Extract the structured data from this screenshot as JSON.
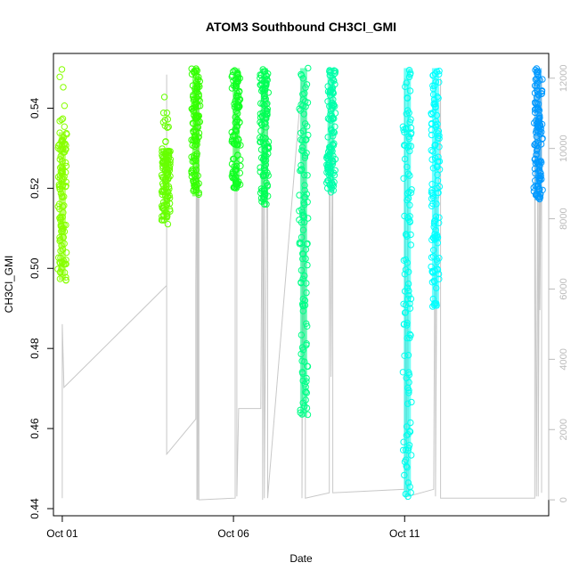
{
  "chart_data": {
    "type": "scatter",
    "title": "ATOM3 Southbound CH3Cl_GMI",
    "xlabel": "Date",
    "ylabel": "CH3Cl_GMI",
    "x_ticks": [
      "Oct 01",
      "Oct 06",
      "Oct 11"
    ],
    "x_tick_days": [
      1,
      6,
      11
    ],
    "xlim_days": [
      0.95,
      15.0
    ],
    "ylim": [
      0.44,
      0.551
    ],
    "y_ticks": [
      0.44,
      0.46,
      0.48,
      0.5,
      0.52,
      0.54
    ],
    "y_tick_labels": [
      "0.44",
      "0.46",
      "0.48",
      "0.50",
      "0.52",
      "0.54"
    ],
    "y2_label": "",
    "y2_lim": [
      -250,
      12400
    ],
    "y2_ticks": [
      0,
      2000,
      4000,
      6000,
      8000,
      10000,
      12000
    ],
    "y2_tick_labels": [
      "0",
      "2000",
      "4000",
      "6000",
      "8000",
      "10000",
      "12000"
    ],
    "altitude_color": "#c8c8c8",
    "grid": false,
    "series": [
      {
        "day": 1.0,
        "color": "#88ff00",
        "dense_min": 0.497,
        "dense_max": 0.534,
        "sparse_min": 0.497,
        "sparse_max": 0.55
      },
      {
        "day": 4.03,
        "color": "#66ff00",
        "dense_min": 0.512,
        "dense_max": 0.53,
        "sparse_min": 0.511,
        "sparse_max": 0.543
      },
      {
        "day": 4.9,
        "color": "#33ff00",
        "dense_min": 0.518,
        "dense_max": 0.55,
        "sparse_min": 0.518,
        "sparse_max": 0.55
      },
      {
        "day": 6.08,
        "color": "#11ff22",
        "dense_min": 0.52,
        "dense_max": 0.55,
        "sparse_min": 0.52,
        "sparse_max": 0.55
      },
      {
        "day": 6.9,
        "color": "#00ff55",
        "dense_min": 0.516,
        "dense_max": 0.55,
        "sparse_min": 0.515,
        "sparse_max": 0.55
      },
      {
        "day": 8.05,
        "color": "#00ff88",
        "dense_min": 0.463,
        "dense_max": 0.55,
        "sparse_min": 0.462,
        "sparse_max": 0.55
      },
      {
        "day": 8.85,
        "color": "#00ffaa",
        "dense_min": 0.519,
        "dense_max": 0.55,
        "sparse_min": 0.518,
        "sparse_max": 0.55
      },
      {
        "day": 11.08,
        "color": "#00ffee",
        "dense_min": 0.443,
        "dense_max": 0.55,
        "sparse_min": 0.443,
        "sparse_max": 0.55
      },
      {
        "day": 11.9,
        "color": "#00ffff",
        "dense_min": 0.49,
        "dense_max": 0.55,
        "sparse_min": 0.49,
        "sparse_max": 0.55
      },
      {
        "day": 14.9,
        "color": "#0099ff",
        "dense_min": 0.517,
        "dense_max": 0.55,
        "sparse_min": 0.517,
        "sparse_max": 0.55
      }
    ],
    "altitude_track": [
      [
        1.0,
        50
      ],
      [
        1.0,
        5000
      ],
      [
        1.05,
        3200
      ],
      [
        4.05,
        6100
      ],
      [
        4.05,
        12100
      ],
      [
        4.05,
        1300
      ],
      [
        4.9,
        2300
      ],
      [
        4.9,
        6100
      ],
      [
        4.93,
        12000
      ],
      [
        4.93,
        0
      ],
      [
        4.96,
        12000
      ],
      [
        4.96,
        0
      ],
      [
        4.99,
        12000
      ],
      [
        4.99,
        6800
      ],
      [
        4.99,
        0
      ],
      [
        6.05,
        50
      ],
      [
        6.05,
        11900
      ],
      [
        6.1,
        12000
      ],
      [
        6.1,
        100
      ],
      [
        6.15,
        2600
      ],
      [
        6.8,
        2600
      ],
      [
        6.85,
        12000
      ],
      [
        6.85,
        0
      ],
      [
        6.9,
        12000
      ],
      [
        6.9,
        50
      ],
      [
        7.0,
        12000
      ],
      [
        7.0,
        50
      ],
      [
        8.0,
        12000
      ],
      [
        8.0,
        50
      ],
      [
        8.05,
        12000
      ],
      [
        8.05,
        3400
      ],
      [
        8.1,
        12000
      ],
      [
        8.1,
        50
      ],
      [
        8.8,
        200
      ],
      [
        8.8,
        12000
      ],
      [
        8.85,
        3500
      ],
      [
        8.9,
        12000
      ],
      [
        8.9,
        200
      ],
      [
        11.0,
        300
      ],
      [
        11.0,
        12000
      ],
      [
        11.05,
        0
      ],
      [
        11.1,
        12000
      ],
      [
        11.1,
        100
      ],
      [
        11.85,
        300
      ],
      [
        11.9,
        12000
      ],
      [
        11.9,
        100
      ],
      [
        11.95,
        8600
      ],
      [
        12.0,
        8600
      ],
      [
        12.05,
        12000
      ],
      [
        12.05,
        50
      ],
      [
        14.8,
        50
      ],
      [
        14.8,
        12000
      ],
      [
        14.85,
        100
      ],
      [
        14.9,
        12000
      ],
      [
        14.9,
        100
      ],
      [
        14.95,
        12000
      ],
      [
        14.95,
        5400
      ],
      [
        15.0,
        12000
      ],
      [
        15.0,
        200
      ]
    ]
  }
}
